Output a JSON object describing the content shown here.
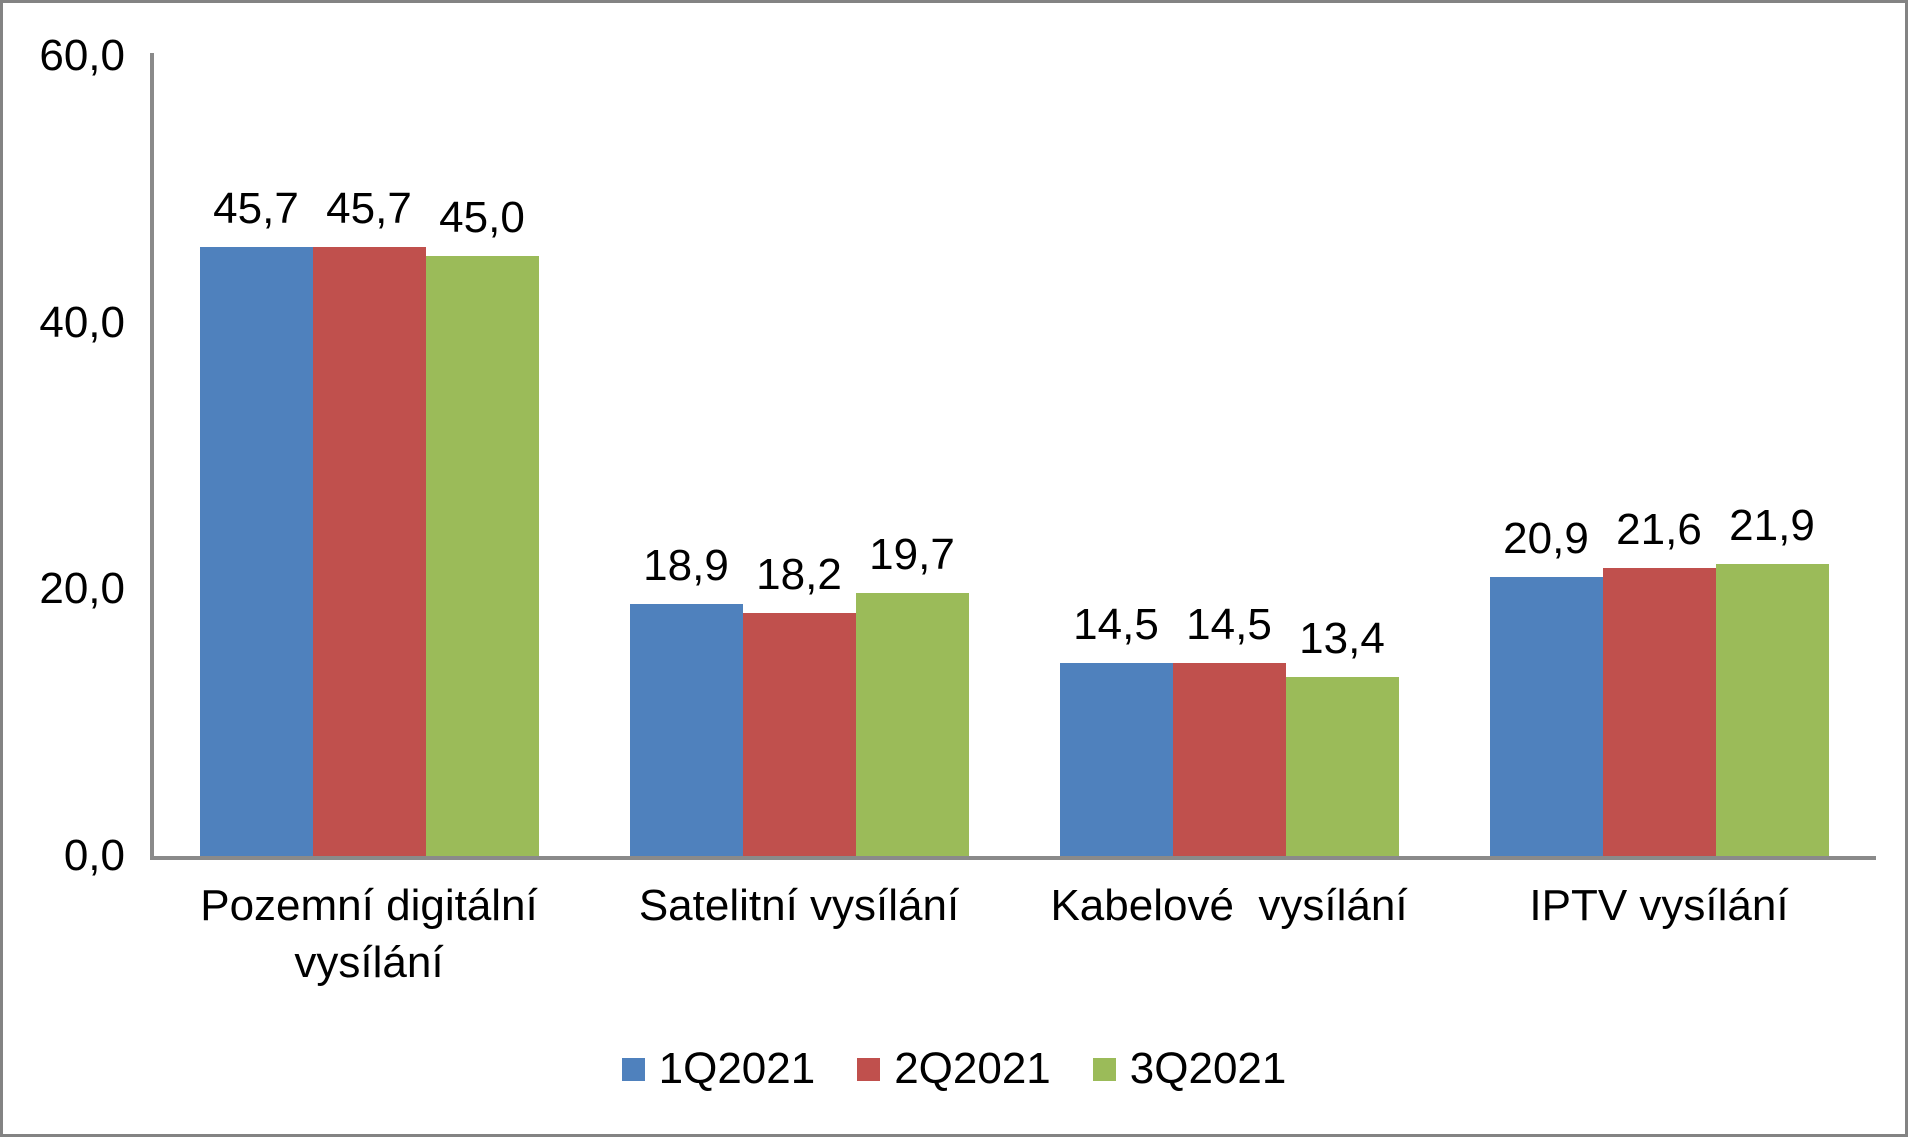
{
  "chart_data": {
    "type": "bar",
    "title": "",
    "categories": [
      "Pozemní digitální\nvysílání",
      "Satelitní vysílání",
      "Kabelové  vysílání",
      "IPTV vysílání"
    ],
    "series": [
      {
        "name": "1Q2021",
        "color": "#4F81BD",
        "values": [
          45.7,
          18.9,
          14.5,
          20.9
        ],
        "labels": [
          "45,7",
          "18,9",
          "14,5",
          "20,9"
        ]
      },
      {
        "name": "2Q2021",
        "color": "#C0504D",
        "values": [
          45.7,
          18.2,
          14.5,
          21.6
        ],
        "labels": [
          "45,7",
          "18,2",
          "14,5",
          "21,6"
        ]
      },
      {
        "name": "3Q2021",
        "color": "#9BBB59",
        "values": [
          45.0,
          19.7,
          13.4,
          21.9
        ],
        "labels": [
          "45,0",
          "19,7",
          "13,4",
          "21,9"
        ]
      }
    ],
    "y_axis": {
      "min": 0,
      "max": 60,
      "tick_values": [
        0,
        20,
        40,
        60
      ],
      "tick_labels": [
        "0,0",
        "20,0",
        "40,0",
        "60,0"
      ]
    },
    "legend": {
      "position": "bottom",
      "entries": [
        "1Q2021",
        "2Q2021",
        "3Q2021"
      ]
    },
    "grid": false,
    "decimal_separator": ",",
    "axis_color": "#8A8A8A",
    "frame_color": "#838383",
    "text_color": "#000000"
  }
}
